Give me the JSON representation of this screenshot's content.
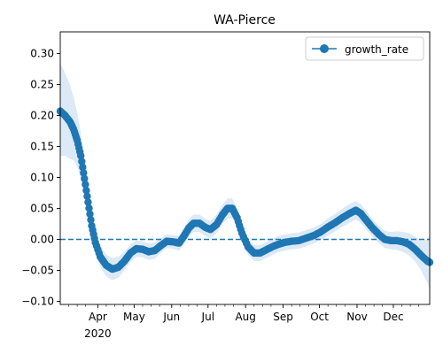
{
  "chart_data": {
    "type": "line",
    "title": "WA-Pierce",
    "xlabel": "",
    "ylabel": "",
    "legend": {
      "placement": "top-right",
      "entries": [
        "growth_rate"
      ]
    },
    "grid": false,
    "xlim": [
      "2020-03-01",
      "2020-12-31"
    ],
    "ylim": [
      -0.105,
      0.335
    ],
    "x_ticks": [
      {
        "date": "2020-04-01",
        "label": "Apr",
        "sublabel": "2020"
      },
      {
        "date": "2020-05-01",
        "label": "May",
        "sublabel": ""
      },
      {
        "date": "2020-06-01",
        "label": "Jun",
        "sublabel": ""
      },
      {
        "date": "2020-07-01",
        "label": "Jul",
        "sublabel": ""
      },
      {
        "date": "2020-08-01",
        "label": "Aug",
        "sublabel": ""
      },
      {
        "date": "2020-09-01",
        "label": "Sep",
        "sublabel": ""
      },
      {
        "date": "2020-10-01",
        "label": "Oct",
        "sublabel": ""
      },
      {
        "date": "2020-11-01",
        "label": "Nov",
        "sublabel": ""
      },
      {
        "date": "2020-12-01",
        "label": "Dec",
        "sublabel": ""
      }
    ],
    "y_ticks": [
      -0.1,
      -0.05,
      0.0,
      0.05,
      0.1,
      0.15,
      0.2,
      0.25,
      0.3
    ],
    "y_tick_labels": [
      "−0.10",
      "−0.05",
      "0.00",
      "0.05",
      "0.10",
      "0.15",
      "0.20",
      "0.25",
      "0.30"
    ],
    "reference_line": {
      "y": 0,
      "style": "dashed",
      "color": "#1f77b4"
    },
    "series": [
      {
        "name": "growth_rate",
        "color": "#1f77b4",
        "band_color": "#dce9f6",
        "marker": "circle",
        "points": [
          {
            "x": "2020-03-01",
            "y": 0.207,
            "lo": 0.135,
            "hi": 0.285
          },
          {
            "x": "2020-03-05",
            "y": 0.2,
            "lo": 0.135,
            "hi": 0.268
          },
          {
            "x": "2020-03-09",
            "y": 0.19,
            "lo": 0.13,
            "hi": 0.25
          },
          {
            "x": "2020-03-12",
            "y": 0.178,
            "lo": 0.128,
            "hi": 0.23
          },
          {
            "x": "2020-03-15",
            "y": 0.16,
            "lo": 0.118,
            "hi": 0.205
          },
          {
            "x": "2020-03-18",
            "y": 0.135,
            "lo": 0.098,
            "hi": 0.172
          },
          {
            "x": "2020-03-21",
            "y": 0.098,
            "lo": 0.068,
            "hi": 0.128
          },
          {
            "x": "2020-03-24",
            "y": 0.06,
            "lo": 0.035,
            "hi": 0.085
          },
          {
            "x": "2020-03-27",
            "y": 0.022,
            "lo": 0.002,
            "hi": 0.042
          },
          {
            "x": "2020-03-30",
            "y": -0.005,
            "lo": -0.022,
            "hi": 0.012
          },
          {
            "x": "2020-04-03",
            "y": -0.028,
            "lo": -0.045,
            "hi": -0.01
          },
          {
            "x": "2020-04-08",
            "y": -0.042,
            "lo": -0.06,
            "hi": -0.025
          },
          {
            "x": "2020-04-13",
            "y": -0.048,
            "lo": -0.066,
            "hi": -0.03
          },
          {
            "x": "2020-04-18",
            "y": -0.045,
            "lo": -0.062,
            "hi": -0.028
          },
          {
            "x": "2020-04-23",
            "y": -0.035,
            "lo": -0.05,
            "hi": -0.02
          },
          {
            "x": "2020-04-28",
            "y": -0.022,
            "lo": -0.036,
            "hi": -0.008
          },
          {
            "x": "2020-05-03",
            "y": -0.015,
            "lo": -0.028,
            "hi": -0.002
          },
          {
            "x": "2020-05-08",
            "y": -0.016,
            "lo": -0.029,
            "hi": -0.003
          },
          {
            "x": "2020-05-13",
            "y": -0.02,
            "lo": -0.033,
            "hi": -0.007
          },
          {
            "x": "2020-05-18",
            "y": -0.018,
            "lo": -0.031,
            "hi": -0.005
          },
          {
            "x": "2020-05-23",
            "y": -0.01,
            "lo": -0.022,
            "hi": 0.002
          },
          {
            "x": "2020-05-28",
            "y": -0.003,
            "lo": -0.014,
            "hi": 0.008
          },
          {
            "x": "2020-06-02",
            "y": -0.004,
            "lo": -0.015,
            "hi": 0.007
          },
          {
            "x": "2020-06-07",
            "y": -0.006,
            "lo": -0.018,
            "hi": 0.006
          },
          {
            "x": "2020-06-11",
            "y": 0.005,
            "lo": -0.008,
            "hi": 0.018
          },
          {
            "x": "2020-06-15",
            "y": 0.018,
            "lo": 0.004,
            "hi": 0.032
          },
          {
            "x": "2020-06-19",
            "y": 0.026,
            "lo": 0.012,
            "hi": 0.04
          },
          {
            "x": "2020-06-24",
            "y": 0.026,
            "lo": 0.012,
            "hi": 0.04
          },
          {
            "x": "2020-06-29",
            "y": 0.019,
            "lo": 0.005,
            "hi": 0.033
          },
          {
            "x": "2020-07-03",
            "y": 0.016,
            "lo": 0.002,
            "hi": 0.03
          },
          {
            "x": "2020-07-08",
            "y": 0.024,
            "lo": 0.01,
            "hi": 0.04
          },
          {
            "x": "2020-07-13",
            "y": 0.04,
            "lo": 0.025,
            "hi": 0.056
          },
          {
            "x": "2020-07-17",
            "y": 0.05,
            "lo": 0.034,
            "hi": 0.066
          },
          {
            "x": "2020-07-21",
            "y": 0.05,
            "lo": 0.034,
            "hi": 0.066
          },
          {
            "x": "2020-07-25",
            "y": 0.035,
            "lo": 0.02,
            "hi": 0.05
          },
          {
            "x": "2020-07-29",
            "y": 0.01,
            "lo": -0.004,
            "hi": 0.024
          },
          {
            "x": "2020-08-03",
            "y": -0.012,
            "lo": -0.025,
            "hi": 0.001
          },
          {
            "x": "2020-08-08",
            "y": -0.022,
            "lo": -0.035,
            "hi": -0.009
          },
          {
            "x": "2020-08-13",
            "y": -0.022,
            "lo": -0.035,
            "hi": -0.009
          },
          {
            "x": "2020-08-18",
            "y": -0.017,
            "lo": -0.03,
            "hi": -0.004
          },
          {
            "x": "2020-08-23",
            "y": -0.012,
            "lo": -0.025,
            "hi": 0.001
          },
          {
            "x": "2020-08-28",
            "y": -0.008,
            "lo": -0.021,
            "hi": 0.005
          },
          {
            "x": "2020-09-02",
            "y": -0.005,
            "lo": -0.018,
            "hi": 0.008
          },
          {
            "x": "2020-09-08",
            "y": -0.003,
            "lo": -0.016,
            "hi": 0.01
          },
          {
            "x": "2020-09-14",
            "y": -0.002,
            "lo": -0.015,
            "hi": 0.011
          },
          {
            "x": "2020-09-20",
            "y": 0.002,
            "lo": -0.011,
            "hi": 0.015
          },
          {
            "x": "2020-09-26",
            "y": 0.006,
            "lo": -0.007,
            "hi": 0.019
          },
          {
            "x": "2020-10-02",
            "y": 0.012,
            "lo": -0.001,
            "hi": 0.025
          },
          {
            "x": "2020-10-08",
            "y": 0.02,
            "lo": 0.006,
            "hi": 0.034
          },
          {
            "x": "2020-10-14",
            "y": 0.027,
            "lo": 0.013,
            "hi": 0.041
          },
          {
            "x": "2020-10-20",
            "y": 0.035,
            "lo": 0.02,
            "hi": 0.05
          },
          {
            "x": "2020-10-26",
            "y": 0.042,
            "lo": 0.027,
            "hi": 0.057
          },
          {
            "x": "2020-10-31",
            "y": 0.047,
            "lo": 0.032,
            "hi": 0.062
          },
          {
            "x": "2020-11-04",
            "y": 0.042,
            "lo": 0.027,
            "hi": 0.057
          },
          {
            "x": "2020-11-09",
            "y": 0.03,
            "lo": 0.015,
            "hi": 0.045
          },
          {
            "x": "2020-11-14",
            "y": 0.018,
            "lo": 0.004,
            "hi": 0.032
          },
          {
            "x": "2020-11-19",
            "y": 0.008,
            "lo": -0.006,
            "hi": 0.022
          },
          {
            "x": "2020-11-24",
            "y": 0.0,
            "lo": -0.014,
            "hi": 0.014
          },
          {
            "x": "2020-11-29",
            "y": -0.002,
            "lo": -0.016,
            "hi": 0.012
          },
          {
            "x": "2020-12-04",
            "y": -0.002,
            "lo": -0.017,
            "hi": 0.013
          },
          {
            "x": "2020-12-09",
            "y": -0.004,
            "lo": -0.02,
            "hi": 0.012
          },
          {
            "x": "2020-12-14",
            "y": -0.008,
            "lo": -0.026,
            "hi": 0.01
          },
          {
            "x": "2020-12-19",
            "y": -0.016,
            "lo": -0.036,
            "hi": 0.004
          },
          {
            "x": "2020-12-24",
            "y": -0.026,
            "lo": -0.05,
            "hi": -0.002
          },
          {
            "x": "2020-12-29",
            "y": -0.035,
            "lo": -0.07,
            "hi": 0.0
          },
          {
            "x": "2020-12-31",
            "y": -0.037,
            "lo": -0.082,
            "hi": 0.008
          }
        ]
      }
    ]
  }
}
